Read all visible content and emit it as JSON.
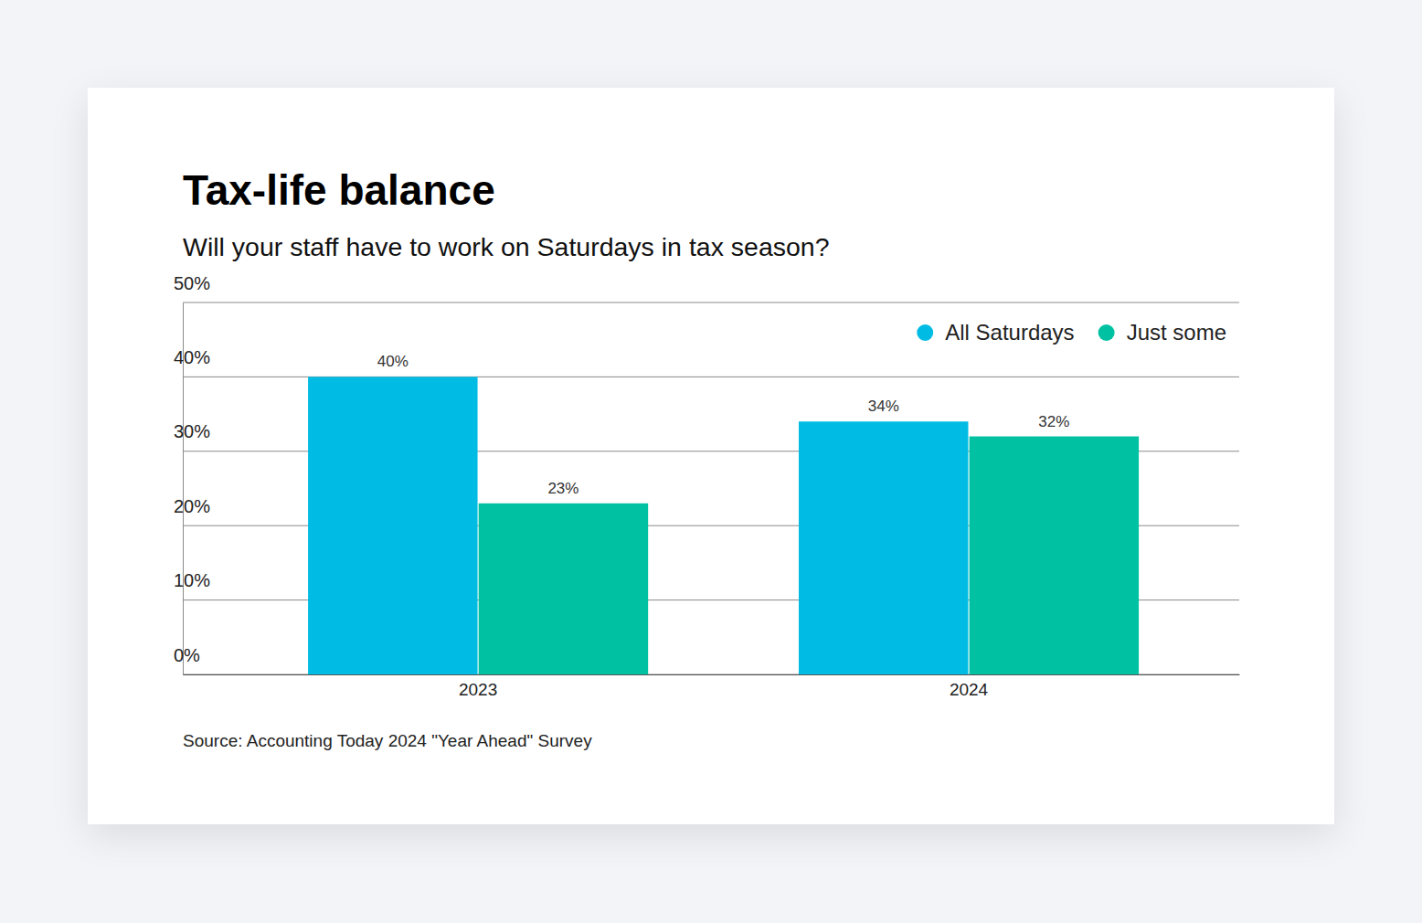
{
  "chart_data": {
    "type": "bar",
    "title": "Tax-life balance",
    "subtitle": "Will your staff have to work on Saturdays in tax season?",
    "categories": [
      "2023",
      "2024"
    ],
    "series": [
      {
        "name": "All Saturdays",
        "color": "#00bce4",
        "values": [
          40,
          34
        ],
        "value_labels": [
          "40%",
          "34%"
        ]
      },
      {
        "name": "Just some",
        "color": "#00c1a2",
        "values": [
          23,
          32
        ],
        "value_labels": [
          "23%",
          "32%"
        ]
      }
    ],
    "ylim": [
      0,
      50
    ],
    "yticks": [
      {
        "value": 0,
        "label": "0%"
      },
      {
        "value": 10,
        "label": "10%"
      },
      {
        "value": 20,
        "label": "20%"
      },
      {
        "value": 30,
        "label": "30%"
      },
      {
        "value": 40,
        "label": "40%"
      },
      {
        "value": 50,
        "label": "50%"
      }
    ],
    "grid": true,
    "legend": "top-right",
    "data_labels": true,
    "source": "Source: Accounting Today 2024 \"Year Ahead\" Survey"
  }
}
